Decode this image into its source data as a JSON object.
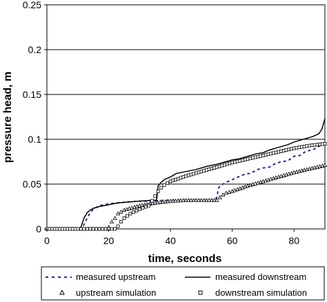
{
  "chart_data": {
    "type": "line",
    "xlabel": "time, seconds",
    "ylabel": "pressure head, m",
    "xlim": [
      0,
      90
    ],
    "ylim": [
      0,
      0.25
    ],
    "x_ticks": [
      "0",
      "20",
      "40",
      "60",
      "80"
    ],
    "x_tick_values": [
      0,
      20,
      40,
      60,
      80
    ],
    "y_ticks": [
      "0",
      "0.05",
      "0.1",
      "0.15",
      "0.2",
      "0.25"
    ],
    "y_tick_values": [
      0,
      0.05,
      0.1,
      0.15,
      0.2,
      0.25
    ],
    "grid": "horizontal",
    "legend_position": "bottom",
    "series": [
      {
        "name": "measured upstream",
        "style": "dashed",
        "color": "#2a2a8c",
        "x": [
          0,
          10,
          11.5,
          12,
          13,
          14,
          15,
          17,
          20,
          23,
          26,
          30,
          34,
          38,
          42,
          46,
          50,
          54,
          55,
          55.5,
          56,
          58,
          60,
          62,
          64,
          66,
          68,
          70,
          72,
          74,
          76,
          78,
          80,
          82,
          84,
          86,
          88,
          90
        ],
        "y": [
          0,
          0,
          0,
          0.005,
          0.012,
          0.018,
          0.022,
          0.026,
          0.028,
          0.029,
          0.03,
          0.031,
          0.031,
          0.032,
          0.032,
          0.032,
          0.032,
          0.032,
          0.035,
          0.045,
          0.048,
          0.052,
          0.055,
          0.058,
          0.061,
          0.062,
          0.066,
          0.068,
          0.069,
          0.073,
          0.075,
          0.076,
          0.081,
          0.082,
          0.087,
          0.088,
          0.092,
          0.096
        ]
      },
      {
        "name": "measured downstream",
        "style": "solid",
        "color": "#000000",
        "x": [
          0,
          10,
          11,
          11.5,
          12,
          13,
          14,
          15,
          17,
          20,
          23,
          26,
          30,
          34,
          35.5,
          36,
          37,
          38,
          40,
          42,
          45,
          48,
          50,
          52,
          55,
          58,
          60,
          62,
          65,
          68,
          70,
          72,
          75,
          78,
          80,
          82,
          84,
          86,
          88,
          89,
          90
        ],
        "y": [
          0,
          0,
          0.002,
          0.007,
          0.012,
          0.018,
          0.021,
          0.023,
          0.025,
          0.027,
          0.029,
          0.03,
          0.031,
          0.032,
          0.032,
          0.048,
          0.052,
          0.055,
          0.058,
          0.062,
          0.064,
          0.066,
          0.068,
          0.07,
          0.072,
          0.075,
          0.077,
          0.078,
          0.081,
          0.084,
          0.085,
          0.088,
          0.091,
          0.094,
          0.097,
          0.099,
          0.101,
          0.103,
          0.106,
          0.111,
          0.123
        ]
      },
      {
        "name": "upstream simulation",
        "style": "marker",
        "marker": "triangle",
        "color": "#000000",
        "x": [
          0,
          5,
          10,
          15,
          19,
          20,
          21,
          22,
          23,
          25,
          30,
          35,
          40,
          45,
          50,
          55,
          56,
          57,
          58,
          60,
          65,
          70,
          75,
          80,
          85,
          90
        ],
        "y": [
          0,
          0,
          0,
          0,
          0,
          0.002,
          0.008,
          0.012,
          0.017,
          0.021,
          0.026,
          0.029,
          0.031,
          0.032,
          0.032,
          0.032,
          0.035,
          0.038,
          0.04,
          0.042,
          0.048,
          0.053,
          0.058,
          0.063,
          0.067,
          0.071
        ]
      },
      {
        "name": "downstream simulation",
        "style": "marker",
        "marker": "square",
        "color": "#000000",
        "x": [
          0,
          5,
          10,
          12,
          14,
          16,
          18,
          20,
          22,
          23,
          24,
          25,
          27,
          30,
          33,
          36,
          37,
          38,
          40,
          45,
          50,
          55,
          60,
          65,
          70,
          75,
          80,
          85,
          90
        ],
        "y": [
          0,
          0,
          0,
          0,
          0,
          0,
          0,
          0,
          0,
          0.003,
          0.008,
          0.012,
          0.017,
          0.022,
          0.026,
          0.042,
          0.046,
          0.049,
          0.053,
          0.059,
          0.064,
          0.069,
          0.074,
          0.078,
          0.082,
          0.086,
          0.09,
          0.093,
          0.095
        ]
      }
    ]
  }
}
